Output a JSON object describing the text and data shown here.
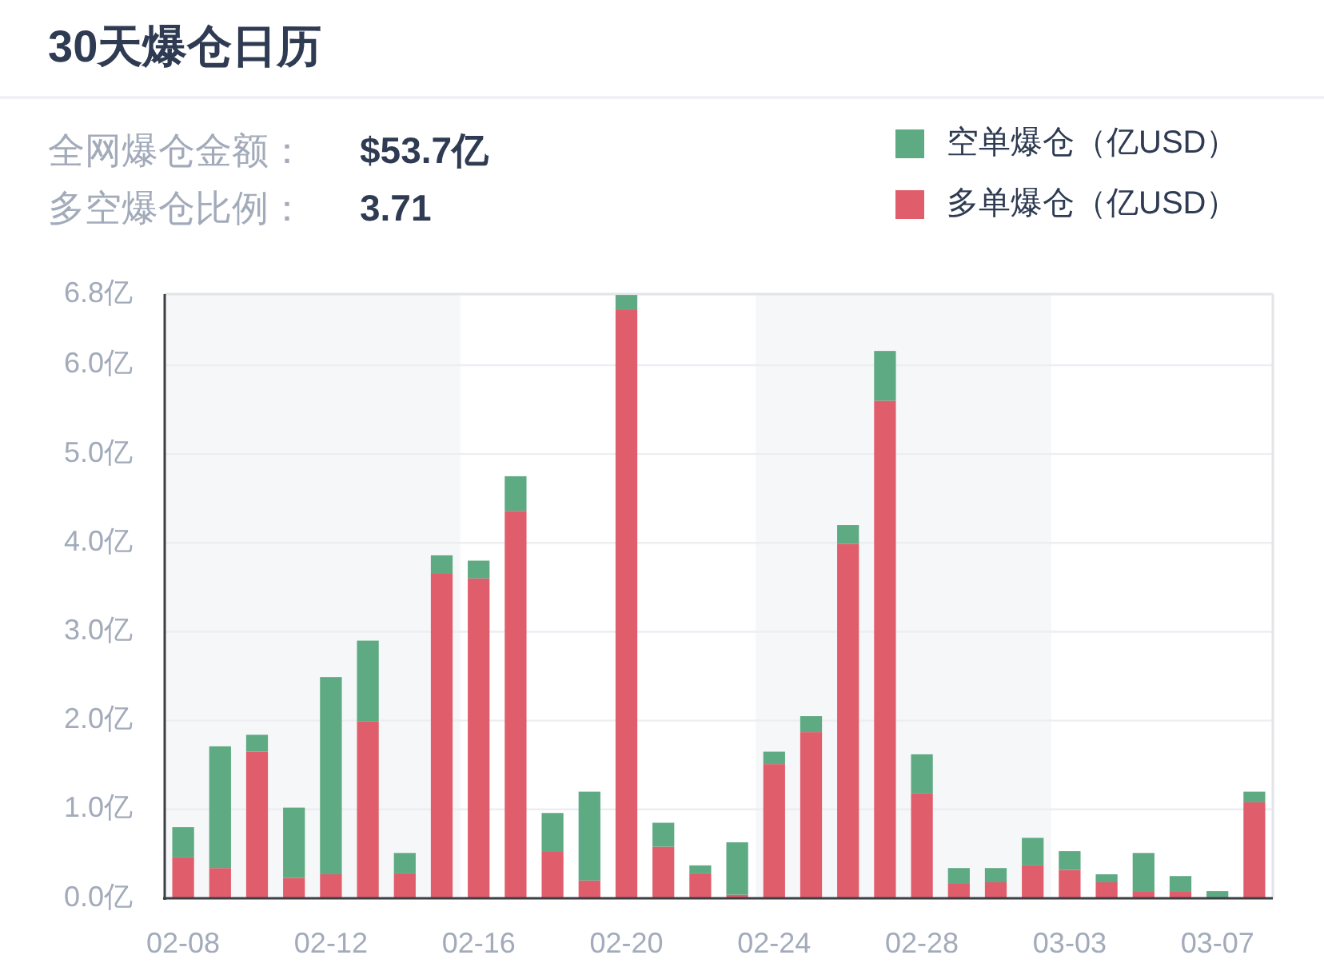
{
  "chart_data": {
    "type": "bar",
    "title": "30天爆仓日历",
    "annotations": [
      "全网爆仓金额：",
      "$53.7亿",
      "多空爆仓比例：",
      "3.71"
    ],
    "categories": [
      "02-08",
      null,
      null,
      null,
      "02-12",
      null,
      null,
      null,
      "02-16",
      null,
      null,
      null,
      "02-20",
      null,
      null,
      null,
      "02-24",
      null,
      null,
      null,
      "02-28",
      null,
      null,
      null,
      "03-03",
      null,
      null,
      null,
      "03-07",
      null
    ],
    "series": [
      {
        "name": "多单爆仓（亿USD）",
        "color": "#e05e6c",
        "values": [
          0.46,
          0.34,
          1.65,
          0.23,
          0.27,
          1.99,
          0.28,
          3.66,
          3.6,
          4.36,
          0.53,
          0.2,
          6.62,
          0.58,
          0.28,
          0.04,
          1.51,
          1.87,
          3.99,
          5.6,
          1.18,
          0.17,
          0.18,
          0.37,
          0.32,
          0.18,
          0.08,
          0.08,
          0,
          1.08
        ]
      },
      {
        "name": "空单爆仓（亿USD）",
        "color": "#5eaa82",
        "values": [
          0.34,
          1.37,
          0.19,
          0.79,
          2.22,
          0.91,
          0.23,
          0.2,
          0.2,
          0.39,
          0.43,
          1.0,
          0.17,
          0.27,
          0.09,
          0.59,
          0.14,
          0.18,
          0.21,
          0.56,
          0.44,
          0.17,
          0.16,
          0.31,
          0.21,
          0.09,
          0.43,
          0.17,
          0.08,
          0.12
        ]
      }
    ],
    "stacked": true,
    "ylim": [
      0,
      6.8
    ],
    "yticks": [
      {
        "value": 0,
        "label": "0.0亿"
      },
      {
        "value": 1,
        "label": "1.0亿"
      },
      {
        "value": 2,
        "label": "2.0亿"
      },
      {
        "value": 3,
        "label": "3.0亿"
      },
      {
        "value": 4,
        "label": "4.0亿"
      },
      {
        "value": 5,
        "label": "5.0亿"
      },
      {
        "value": 6,
        "label": "6.0亿"
      },
      {
        "value": 6.8,
        "label": "6.8亿"
      }
    ],
    "grid": "y",
    "legend": "top right",
    "bands": [
      {
        "axis": "x",
        "from": "02-08",
        "to": "02-16",
        "color": "#f6f7f9"
      },
      {
        "axis": "x",
        "from": "02-24",
        "to": "03-03",
        "color": "#f6f7f9"
      }
    ]
  }
}
